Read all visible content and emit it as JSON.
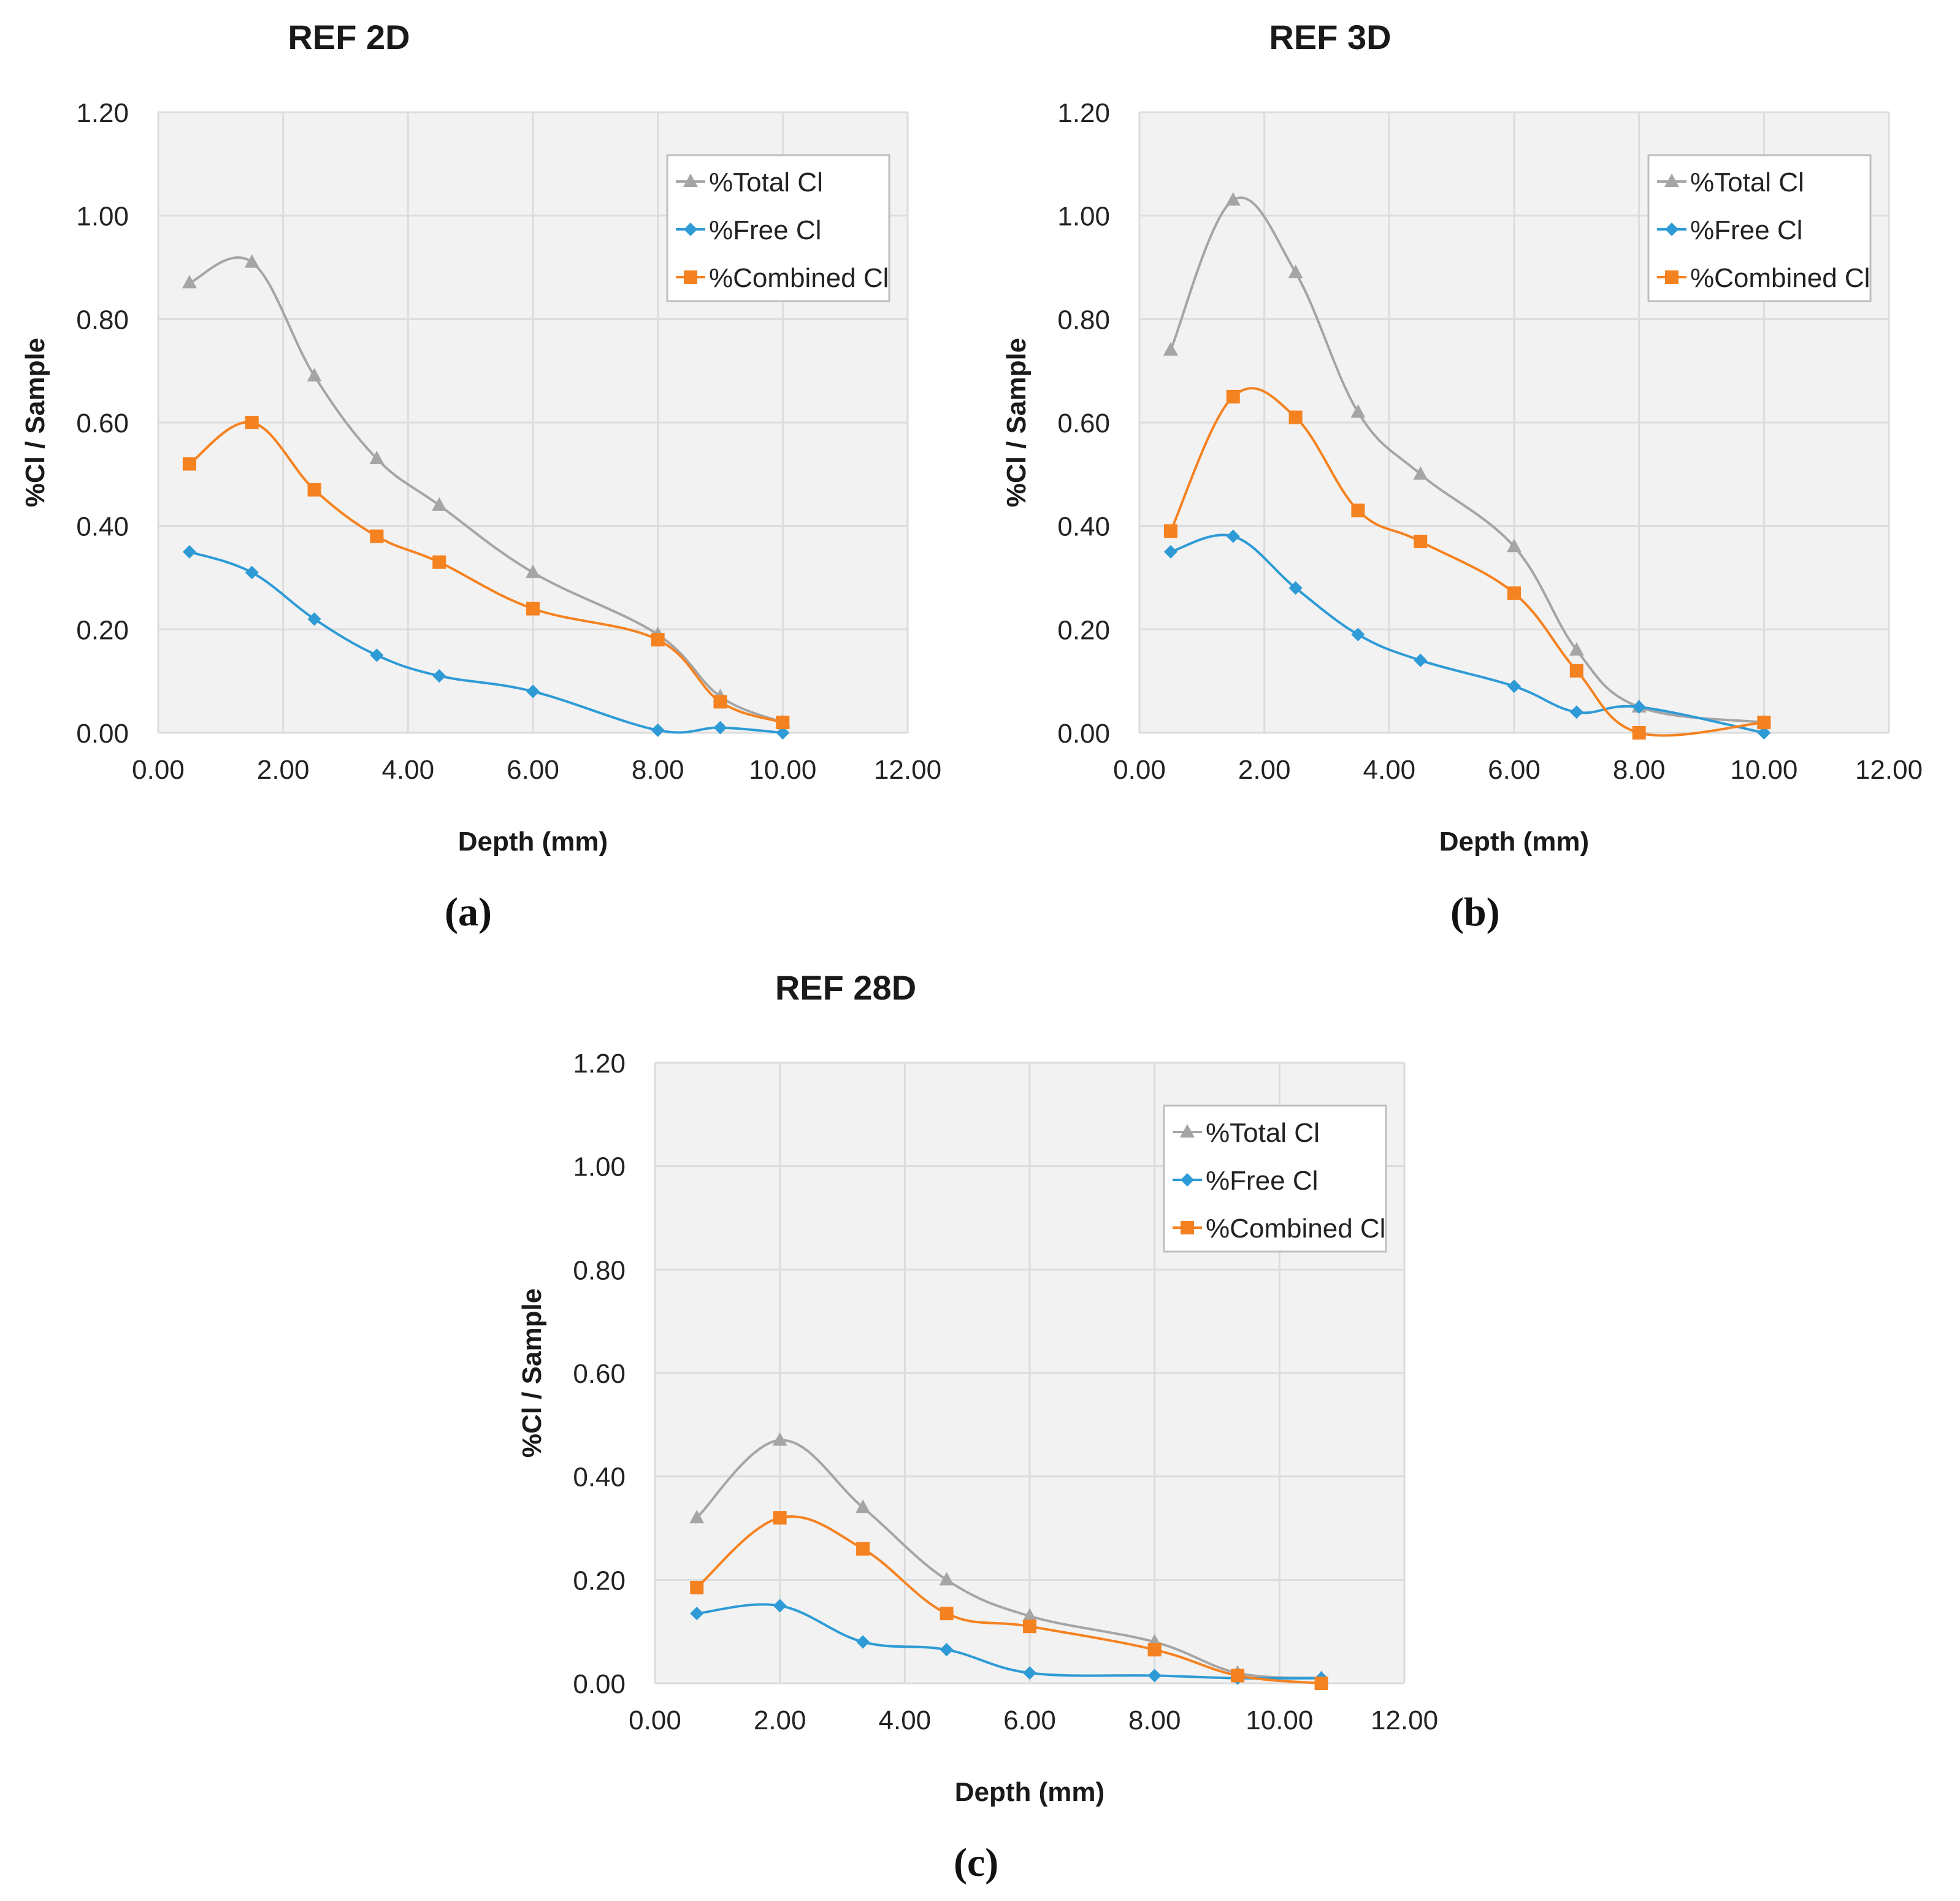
{
  "figure": {
    "panel_labels": [
      "(a)",
      "(b)",
      "(c)"
    ]
  },
  "chart_data": [
    {
      "type": "line",
      "title": "REF 2D",
      "xlabel": "Depth (mm)",
      "ylabel": "%Cl / Sample",
      "xlim": [
        0,
        12
      ],
      "ylim": [
        0,
        1.2
      ],
      "xticks": [
        "0.00",
        "2.00",
        "4.00",
        "6.00",
        "8.00",
        "10.00",
        "12.00"
      ],
      "yticks": [
        "0.00",
        "0.20",
        "0.40",
        "0.60",
        "0.80",
        "1.00",
        "1.20"
      ],
      "grid": true,
      "legend_position": "top-right",
      "series": [
        {
          "name": "%Total Cl",
          "color": "#a5a5a5",
          "marker": "triangle",
          "x": [
            0.5,
            1.5,
            2.5,
            3.5,
            4.5,
            6.0,
            8.0,
            9.0,
            10.0
          ],
          "y": [
            0.87,
            0.91,
            0.69,
            0.53,
            0.44,
            0.31,
            0.19,
            0.07,
            0.02
          ]
        },
        {
          "name": "%Free Cl",
          "color": "#2e9bd6",
          "marker": "diamond",
          "x": [
            0.5,
            1.5,
            2.5,
            3.5,
            4.5,
            6.0,
            8.0,
            9.0,
            10.0
          ],
          "y": [
            0.35,
            0.31,
            0.22,
            0.15,
            0.11,
            0.08,
            0.005,
            0.01,
            0.0
          ]
        },
        {
          "name": "%Combined Cl",
          "color": "#f58220",
          "marker": "square",
          "x": [
            0.5,
            1.5,
            2.5,
            3.5,
            4.5,
            6.0,
            8.0,
            9.0,
            10.0
          ],
          "y": [
            0.52,
            0.6,
            0.47,
            0.38,
            0.33,
            0.24,
            0.18,
            0.06,
            0.02
          ]
        }
      ]
    },
    {
      "type": "line",
      "title": "REF 3D",
      "xlabel": "Depth (mm)",
      "ylabel": "%Cl / Sample",
      "xlim": [
        0,
        12
      ],
      "ylim": [
        0,
        1.2
      ],
      "xticks": [
        "0.00",
        "2.00",
        "4.00",
        "6.00",
        "8.00",
        "10.00",
        "12.00"
      ],
      "yticks": [
        "0.00",
        "0.20",
        "0.40",
        "0.60",
        "0.80",
        "1.00",
        "1.20"
      ],
      "grid": true,
      "legend_position": "top-right",
      "series": [
        {
          "name": "%Total Cl",
          "color": "#a5a5a5",
          "marker": "triangle",
          "x": [
            0.5,
            1.5,
            2.5,
            3.5,
            4.5,
            6.0,
            7.0,
            8.0,
            10.0
          ],
          "y": [
            0.74,
            1.03,
            0.89,
            0.62,
            0.5,
            0.36,
            0.16,
            0.05,
            0.02
          ]
        },
        {
          "name": "%Free Cl",
          "color": "#2e9bd6",
          "marker": "diamond",
          "x": [
            0.5,
            1.5,
            2.5,
            3.5,
            4.5,
            6.0,
            7.0,
            8.0,
            10.0
          ],
          "y": [
            0.35,
            0.38,
            0.28,
            0.19,
            0.14,
            0.09,
            0.04,
            0.05,
            0.0
          ]
        },
        {
          "name": "%Combined Cl",
          "color": "#f58220",
          "marker": "square",
          "x": [
            0.5,
            1.5,
            2.5,
            3.5,
            4.5,
            6.0,
            7.0,
            8.0,
            10.0
          ],
          "y": [
            0.39,
            0.65,
            0.61,
            0.43,
            0.37,
            0.27,
            0.12,
            0.0,
            0.02
          ]
        }
      ]
    },
    {
      "type": "line",
      "title": "REF 28D",
      "xlabel": "Depth (mm)",
      "ylabel": "%Cl / Sample",
      "xlim": [
        0,
        12
      ],
      "ylim": [
        0,
        1.2
      ],
      "xticks": [
        "0.00",
        "2.00",
        "4.00",
        "6.00",
        "8.00",
        "10.00",
        "12.00"
      ],
      "yticks": [
        "0.00",
        "0.20",
        "0.40",
        "0.60",
        "0.80",
        "1.00",
        "1.20"
      ],
      "grid": true,
      "legend_position": "top-right",
      "series": [
        {
          "name": "%Total Cl",
          "color": "#a5a5a5",
          "marker": "triangle",
          "x": [
            0.67,
            2.0,
            3.33,
            4.67,
            6.0,
            8.0,
            9.33,
            10.67
          ],
          "y": [
            0.32,
            0.47,
            0.34,
            0.2,
            0.13,
            0.08,
            0.02,
            0.01
          ]
        },
        {
          "name": "%Free Cl",
          "color": "#2e9bd6",
          "marker": "diamond",
          "x": [
            0.67,
            2.0,
            3.33,
            4.67,
            6.0,
            8.0,
            9.33,
            10.67
          ],
          "y": [
            0.135,
            0.15,
            0.08,
            0.065,
            0.02,
            0.015,
            0.01,
            0.01
          ]
        },
        {
          "name": "%Combined Cl",
          "color": "#f58220",
          "marker": "square",
          "x": [
            0.67,
            2.0,
            3.33,
            4.67,
            6.0,
            8.0,
            9.33,
            10.67
          ],
          "y": [
            0.185,
            0.32,
            0.26,
            0.135,
            0.11,
            0.065,
            0.015,
            0.0
          ]
        }
      ]
    }
  ]
}
